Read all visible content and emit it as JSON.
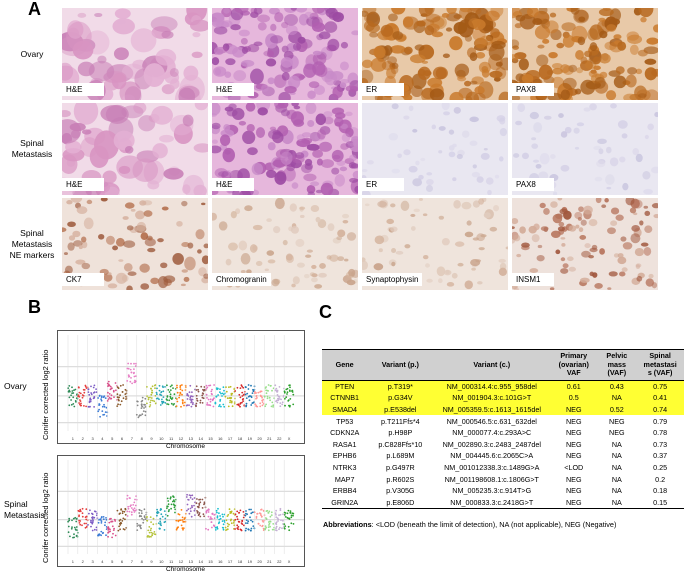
{
  "panels": {
    "a": "A",
    "b": "B",
    "c": "C"
  },
  "histology": {
    "rows": [
      {
        "label_lines": [
          "Ovary"
        ],
        "stains": [
          "H&E",
          "H&E",
          "ER",
          "PAX8"
        ],
        "kinds": [
          "he_low",
          "he_high",
          "brown_strong",
          "brown_strong"
        ]
      },
      {
        "label_lines": [
          "Spinal",
          "Metastasis"
        ],
        "stains": [
          "H&E",
          "H&E",
          "ER",
          "PAX8"
        ],
        "kinds": [
          "he_low",
          "he_high",
          "neg_blue",
          "neg_blue"
        ]
      },
      {
        "label_lines": [
          "Spinal",
          "Metastasis",
          "NE markers"
        ],
        "stains": [
          "CK7",
          "Chromogranin",
          "Synaptophysin",
          "INSM1"
        ],
        "kinds": [
          "ihc_ck7",
          "ihc_light",
          "ihc_light",
          "ihc_insm1"
        ]
      }
    ]
  },
  "cnv_plots": [
    {
      "name_lines": [
        "Ovary"
      ],
      "ylabel": "Conifer corrected log2 ratio",
      "xlabel": "Chromosome",
      "chromosomes": [
        "1",
        "2",
        "3",
        "4",
        "5",
        "6",
        "7",
        "8",
        "9",
        "10",
        "11",
        "12",
        "13",
        "14",
        "15",
        "16",
        "17",
        "18",
        "19",
        "20",
        "21",
        "22",
        "X"
      ]
    },
    {
      "name_lines": [
        "Spinal",
        "Metastasis"
      ],
      "ylabel": "Conifer corrected log2 ratio",
      "xlabel": "Chromosome",
      "chromosomes": [
        "1",
        "2",
        "3",
        "4",
        "5",
        "6",
        "7",
        "8",
        "9",
        "10",
        "11",
        "12",
        "13",
        "14",
        "15",
        "16",
        "17",
        "18",
        "19",
        "20",
        "21",
        "22",
        "X"
      ]
    }
  ],
  "table": {
    "headers": [
      "Gene",
      "Variant (p.)",
      "Variant (c.)",
      "Primary (ovarian) VAF",
      "Pelvic mass (VAF)",
      "Spinal metastasis (VAF)"
    ],
    "header_lines": [
      [
        "Gene"
      ],
      [
        "Variant (p.)"
      ],
      [
        "Variant (c.)"
      ],
      [
        "Primary",
        "(ovarian)",
        "VAF"
      ],
      [
        "Pelvic",
        "mass",
        "(VAF)"
      ],
      [
        "Spinal",
        "metastasi",
        "s (VAF)"
      ]
    ],
    "highlight_color": "#ffff33",
    "rows": [
      {
        "gene": "PTEN",
        "p": "p.T319*",
        "c": "NM_000314.4:c.955_958del",
        "primary": "0.61",
        "pelvic": "0.43",
        "spinal": "0.75",
        "highlight": true
      },
      {
        "gene": "CTNNB1",
        "p": "p.G34V",
        "c": "NM_001904.3:c.101G>T",
        "primary": "0.5",
        "pelvic": "NA",
        "spinal": "0.41",
        "highlight": true
      },
      {
        "gene": "SMAD4",
        "p": "p.E538del",
        "c": "NM_005359.5:c.1613_1615del",
        "primary": "NEG",
        "pelvic": "0.52",
        "spinal": "0.74",
        "highlight": true
      },
      {
        "gene": "TP53",
        "p": "p.T211Ffs*4",
        "c": "NM_000546.5:c.631_632del",
        "primary": "NEG",
        "pelvic": "NEG",
        "spinal": "0.79",
        "highlight": false
      },
      {
        "gene": "CDKN2A",
        "p": "p.H98P",
        "c": "NM_000077.4:c.293A>C",
        "primary": "NEG",
        "pelvic": "NEG",
        "spinal": "0.78",
        "highlight": false
      },
      {
        "gene": "RASA1",
        "p": "p.C828Ffs*10",
        "c": "NM_002890.3:c.2483_2487del",
        "primary": "NEG",
        "pelvic": "NA",
        "spinal": "0.73",
        "highlight": false
      },
      {
        "gene": "EPHB6",
        "p": "p.L689M",
        "c": "NM_004445.6:c.2065C>A",
        "primary": "NEG",
        "pelvic": "NA",
        "spinal": "0.37",
        "highlight": false
      },
      {
        "gene": "NTRK3",
        "p": "p.G497R",
        "c": "NM_001012338.3:c.1489G>A",
        "primary": "<LOD",
        "pelvic": "NA",
        "spinal": "0.25",
        "highlight": false
      },
      {
        "gene": "MAP7",
        "p": "p.R602S",
        "c": "NM_001198608.1:c.1806G>T",
        "primary": "NEG",
        "pelvic": "NA",
        "spinal": "0.2",
        "highlight": false
      },
      {
        "gene": "ERBB4",
        "p": "p.V305G",
        "c": "NM_005235.3:c.914T>G",
        "primary": "NEG",
        "pelvic": "NA",
        "spinal": "0.18",
        "highlight": false
      },
      {
        "gene": "GRIN2A",
        "p": "p.E806D",
        "c": "NM_000833.3:c.2418G>T",
        "primary": "NEG",
        "pelvic": "NA",
        "spinal": "0.15",
        "highlight": false
      }
    ],
    "abbreviations_title": "Abbreviations",
    "abbreviations_text": ": <LOD (beneath the limit of detection), NA (not applicable), NEG (Negative)"
  }
}
